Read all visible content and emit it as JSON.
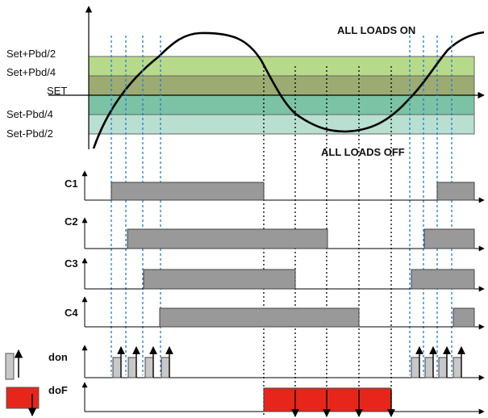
{
  "bands": [
    {
      "label": "Set+Pbd/2",
      "color": "#b7d98a"
    },
    {
      "label": "Set+Pbd/4",
      "color": "#9cab72"
    },
    {
      "label": "SET",
      "color": "#7cc2a4"
    },
    {
      "label": "Set-Pbd/4",
      "color": "#b9dfd0"
    },
    {
      "label": "Set-Pbd/2",
      "color": ""
    }
  ],
  "annotations": {
    "all_on": "ALL LOADS ON",
    "all_off": "ALL LOADS OFF"
  },
  "rows": [
    {
      "label": "C1",
      "kind": "step"
    },
    {
      "label": "C2",
      "kind": "step"
    },
    {
      "label": "C3",
      "kind": "step"
    },
    {
      "label": "C4",
      "kind": "step"
    },
    {
      "label": "don",
      "kind": "pulse"
    },
    {
      "label": "doF",
      "kind": "pulse"
    }
  ],
  "colors": {
    "step_bar": "#999999",
    "don_bar": "#c8c8c8",
    "dof_bar": "#e8251b",
    "guide_on": "#1f7ad6",
    "guide_off": "#000000"
  },
  "legend": {
    "don_icon": "gray-pulse-up",
    "dof_icon": "red-pulse-down"
  }
}
